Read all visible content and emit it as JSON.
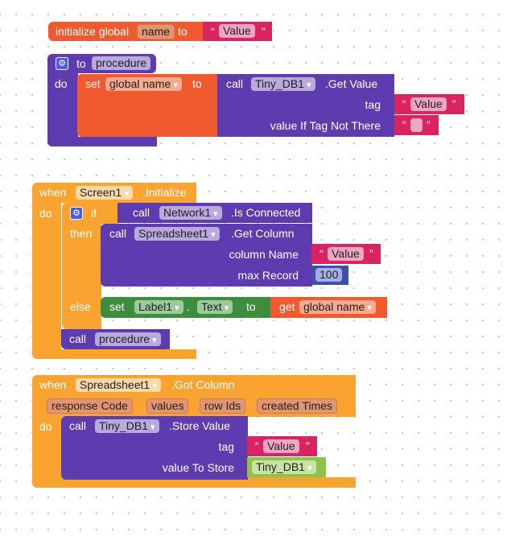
{
  "init": {
    "kw": "initialize global",
    "name": "name",
    "to": "to",
    "value": "Value"
  },
  "proc": {
    "to": "to",
    "name": "procedure",
    "do": "do",
    "set": "set",
    "var": "global name",
    "to2": "to",
    "call": "call",
    "component": "Tiny_DB1",
    "method": ".Get Value",
    "tag": "tag",
    "tag_value": "Value",
    "not_there": "value If Tag Not There",
    "not_there_value": ""
  },
  "screen": {
    "when": "when",
    "component": "Screen1",
    "event": ".Initialize",
    "do": "do",
    "if": "if",
    "then": "then",
    "else": "else",
    "call1": "call",
    "net": "Network1",
    "net_method": ".Is Connected",
    "call2": "call",
    "sheet": "Spreadsheet1",
    "sheet_method": ".Get Column",
    "col_label": "column Name",
    "col_value": "Value",
    "max_label": "max Record",
    "max_value": "100",
    "set": "set",
    "label": "Label1",
    "dot": ".",
    "prop": "Text",
    "to": "to",
    "get": "get",
    "get_var": "global name",
    "call3": "call",
    "proc": "procedure"
  },
  "gotcol": {
    "when": "when",
    "component": "Spreadsheet1",
    "event": ".Got Column",
    "params": [
      "response Code",
      "values",
      "row Ids",
      "created Times"
    ],
    "do": "do",
    "call": "call",
    "db": "Tiny_DB1",
    "method": ".Store Value",
    "tag": "tag",
    "tag_value": "Value",
    "store_label": "value To Store",
    "store_value": "Tiny_DB1"
  },
  "colors": {
    "variables": "#F15A2E",
    "procedures": "#5E3BAE",
    "control": "#F9A431",
    "text": "#DA2462",
    "component_set": "#3C8E3E",
    "component": "#8FC24A",
    "math": "#3E4FB0"
  }
}
